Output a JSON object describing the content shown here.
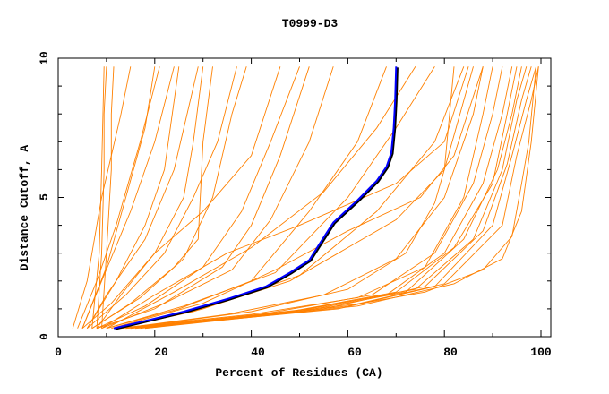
{
  "chart_data": {
    "type": "line",
    "title": "T0999-D3",
    "xlabel": "Percent of Residues (CA)",
    "ylabel": "Distance Cutoff, A",
    "xlim": [
      0,
      102
    ],
    "ylim": [
      0,
      10
    ],
    "xticks": [
      "0",
      "20",
      "40",
      "60",
      "80",
      "100"
    ],
    "yticks": [
      "0",
      "5",
      "10"
    ],
    "grid": false,
    "colors": {
      "models": "#ff8000",
      "highlight": "#0000ff",
      "highlight_shadow": "#000000"
    },
    "highlight": [
      [
        11.5,
        0.3
      ],
      [
        20,
        0.65
      ],
      [
        26,
        0.9
      ],
      [
        35,
        1.35
      ],
      [
        43,
        1.8
      ],
      [
        48,
        2.3
      ],
      [
        52,
        2.75
      ],
      [
        54,
        3.3
      ],
      [
        57,
        4.1
      ],
      [
        62,
        4.9
      ],
      [
        66,
        5.6
      ],
      [
        68,
        6.1
      ],
      [
        69,
        6.6
      ],
      [
        69.5,
        7.5
      ],
      [
        69.8,
        8.5
      ],
      [
        70,
        9.7
      ]
    ],
    "series": [
      [
        [
          8,
          0.3
        ],
        [
          9,
          3
        ],
        [
          9.5,
          6
        ],
        [
          9.5,
          8
        ],
        [
          10,
          9.7
        ]
      ],
      [
        [
          9,
          0.3
        ],
        [
          10,
          3
        ],
        [
          11,
          6
        ],
        [
          11,
          8
        ],
        [
          11.5,
          9.7
        ]
      ],
      [
        [
          7,
          0.3
        ],
        [
          8.5,
          3
        ],
        [
          9,
          6
        ],
        [
          9.5,
          9.7
        ]
      ],
      [
        [
          3,
          0.3
        ],
        [
          6,
          2
        ],
        [
          9,
          5
        ],
        [
          13,
          8
        ],
        [
          15,
          9.7
        ]
      ],
      [
        [
          4,
          0.3
        ],
        [
          8,
          2
        ],
        [
          12,
          4
        ],
        [
          17,
          7
        ],
        [
          21,
          9.7
        ]
      ],
      [
        [
          5,
          0.3
        ],
        [
          9,
          2
        ],
        [
          15,
          4.5
        ],
        [
          20,
          7
        ],
        [
          24,
          9.7
        ]
      ],
      [
        [
          6,
          0.3
        ],
        [
          10,
          1.5
        ],
        [
          18,
          3.5
        ],
        [
          24,
          6
        ],
        [
          29,
          9.7
        ]
      ],
      [
        [
          5,
          0.3
        ],
        [
          11,
          1.2
        ],
        [
          20,
          3
        ],
        [
          26,
          5
        ],
        [
          28,
          7
        ],
        [
          30,
          9.7
        ]
      ],
      [
        [
          6,
          0.3
        ],
        [
          14,
          1.5
        ],
        [
          22,
          3
        ],
        [
          28,
          5
        ],
        [
          33,
          7
        ],
        [
          37,
          9.7
        ]
      ],
      [
        [
          7,
          0.3
        ],
        [
          15,
          1.2
        ],
        [
          24,
          2.5
        ],
        [
          29,
          3.5
        ],
        [
          30,
          7
        ],
        [
          32,
          9.7
        ]
      ],
      [
        [
          7,
          0.3
        ],
        [
          17,
          1.4
        ],
        [
          26,
          2.8
        ],
        [
          32,
          5
        ],
        [
          36,
          8
        ],
        [
          39,
          9.7
        ]
      ],
      [
        [
          8,
          0.3
        ],
        [
          18,
          1.1
        ],
        [
          30,
          2.5
        ],
        [
          38,
          4.5
        ],
        [
          44,
          7
        ],
        [
          50,
          9.7
        ]
      ],
      [
        [
          8,
          0.3
        ],
        [
          20,
          1.0
        ],
        [
          34,
          2.5
        ],
        [
          40,
          4
        ],
        [
          46,
          6.5
        ],
        [
          52,
          9.7
        ]
      ],
      [
        [
          9,
          0.3
        ],
        [
          22,
          1.2
        ],
        [
          36,
          2.4
        ],
        [
          44,
          4.2
        ],
        [
          52,
          7
        ],
        [
          57,
          9.7
        ]
      ],
      [
        [
          10,
          0.3
        ],
        [
          25,
          1.0
        ],
        [
          40,
          2.0
        ],
        [
          52,
          4.5
        ],
        [
          62,
          7
        ],
        [
          68,
          9.7
        ]
      ],
      [
        [
          10,
          0.3
        ],
        [
          26,
          1.1
        ],
        [
          45,
          2.3
        ],
        [
          60,
          5
        ],
        [
          70,
          7.5
        ],
        [
          78,
          9.7
        ]
      ],
      [
        [
          12,
          0.3
        ],
        [
          30,
          1.0
        ],
        [
          50,
          2.2
        ],
        [
          66,
          4.5
        ],
        [
          78,
          7
        ],
        [
          84,
          9.7
        ]
      ],
      [
        [
          12,
          0.3
        ],
        [
          28,
          0.9
        ],
        [
          48,
          2.0
        ],
        [
          70,
          4.2
        ],
        [
          80,
          6
        ],
        [
          86,
          9.7
        ]
      ],
      [
        [
          13,
          0.3
        ],
        [
          35,
          0.8
        ],
        [
          55,
          1.5
        ],
        [
          70,
          2.8
        ],
        [
          80,
          5
        ],
        [
          86,
          8
        ],
        [
          88,
          9.7
        ]
      ],
      [
        [
          12,
          0.3
        ],
        [
          40,
          0.8
        ],
        [
          62,
          1.4
        ],
        [
          76,
          2.5
        ],
        [
          84,
          5
        ],
        [
          88,
          8
        ],
        [
          90,
          9.7
        ]
      ],
      [
        [
          13,
          0.3
        ],
        [
          42,
          0.8
        ],
        [
          65,
          1.5
        ],
        [
          78,
          3
        ],
        [
          86,
          5.5
        ],
        [
          90,
          8
        ],
        [
          92,
          9.7
        ]
      ],
      [
        [
          14,
          0.3
        ],
        [
          45,
          0.8
        ],
        [
          68,
          1.5
        ],
        [
          80,
          3
        ],
        [
          88,
          5.5
        ],
        [
          92,
          8
        ],
        [
          94,
          9.7
        ]
      ],
      [
        [
          14,
          0.3
        ],
        [
          48,
          0.9
        ],
        [
          70,
          1.6
        ],
        [
          82,
          3.2
        ],
        [
          90,
          5.5
        ],
        [
          93,
          8
        ],
        [
          95,
          9.7
        ]
      ],
      [
        [
          15,
          0.3
        ],
        [
          50,
          0.9
        ],
        [
          72,
          1.6
        ],
        [
          84,
          3.5
        ],
        [
          91,
          6
        ],
        [
          94,
          8
        ],
        [
          96,
          9.7
        ]
      ],
      [
        [
          15,
          0.3
        ],
        [
          52,
          1.0
        ],
        [
          74,
          1.7
        ],
        [
          86,
          3.5
        ],
        [
          92,
          6
        ],
        [
          95,
          8.5
        ],
        [
          97,
          9.7
        ]
      ],
      [
        [
          16,
          0.3
        ],
        [
          55,
          1.0
        ],
        [
          76,
          1.8
        ],
        [
          88,
          3.8
        ],
        [
          93,
          6.2
        ],
        [
          96,
          8.5
        ],
        [
          98,
          9.7
        ]
      ],
      [
        [
          16,
          0.3
        ],
        [
          58,
          1.0
        ],
        [
          78,
          1.8
        ],
        [
          90,
          4
        ],
        [
          94,
          6.5
        ],
        [
          97,
          8.5
        ],
        [
          99,
          9.7
        ]
      ],
      [
        [
          17,
          0.3
        ],
        [
          60,
          1.1
        ],
        [
          80,
          1.9
        ],
        [
          92,
          4
        ],
        [
          95,
          6.5
        ],
        [
          98,
          8.5
        ],
        [
          99.5,
          9.7
        ]
      ],
      [
        [
          18,
          0.3
        ],
        [
          62,
          1.1
        ],
        [
          82,
          1.9
        ],
        [
          92,
          2.8
        ],
        [
          96,
          4.5
        ],
        [
          98,
          7
        ],
        [
          99.5,
          9.7
        ]
      ],
      [
        [
          18,
          0.3
        ],
        [
          63,
          1.2
        ],
        [
          76,
          1.6
        ],
        [
          88,
          2.4
        ],
        [
          94,
          3.6
        ],
        [
          96,
          5.5
        ],
        [
          97.5,
          7
        ],
        [
          99,
          9.7
        ]
      ],
      [
        [
          14,
          0.3
        ],
        [
          40,
          0.9
        ],
        [
          60,
          1.7
        ],
        [
          72,
          3
        ],
        [
          78,
          4.8
        ],
        [
          80,
          6
        ],
        [
          82,
          9.7
        ]
      ],
      [
        [
          11,
          0.3
        ],
        [
          30,
          1.2
        ],
        [
          45,
          2.4
        ],
        [
          60,
          3.8
        ],
        [
          75,
          5
        ],
        [
          82,
          6.5
        ],
        [
          88,
          9.7
        ]
      ],
      [
        [
          9,
          0.3
        ],
        [
          20,
          1.5
        ],
        [
          35,
          3
        ],
        [
          50,
          4
        ],
        [
          70,
          5.5
        ],
        [
          80,
          7
        ],
        [
          85,
          9.7
        ]
      ],
      [
        [
          10,
          0.3
        ],
        [
          24,
          1.6
        ],
        [
          40,
          3.2
        ],
        [
          55,
          5.2
        ],
        [
          66,
          7.5
        ],
        [
          74,
          9.7
        ]
      ],
      [
        [
          6,
          0.3
        ],
        [
          12,
          2
        ],
        [
          18,
          4
        ],
        [
          22,
          6
        ],
        [
          25,
          9.7
        ]
      ],
      [
        [
          5,
          0.3
        ],
        [
          10,
          2.5
        ],
        [
          14,
          5
        ],
        [
          18,
          7.5
        ],
        [
          20,
          9.7
        ]
      ],
      [
        [
          8,
          0.3
        ],
        [
          13,
          1.5
        ],
        [
          20,
          3
        ],
        [
          30,
          4.5
        ],
        [
          40,
          6.5
        ],
        [
          46,
          9.7
        ]
      ]
    ]
  }
}
